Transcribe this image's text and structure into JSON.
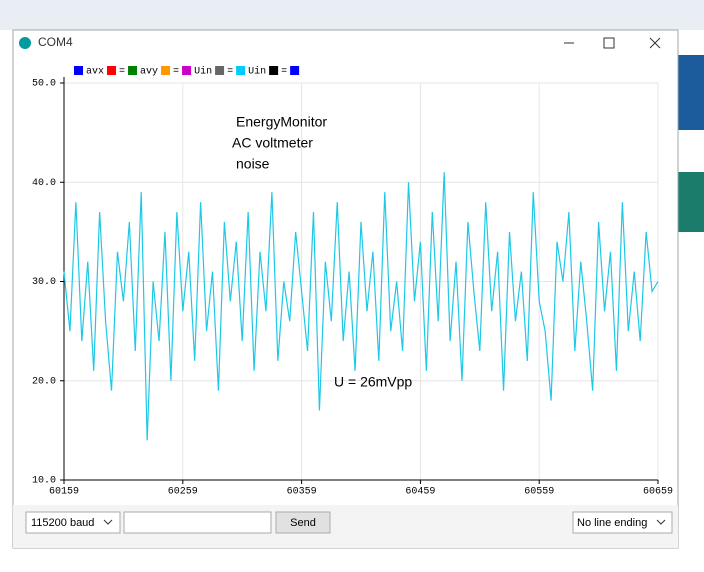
{
  "window": {
    "title": "COM4",
    "baud": "115200 baud",
    "send": "Send",
    "line_ending": "No line ending"
  },
  "chart_data": {
    "type": "line",
    "legend": [
      {
        "name": "avx",
        "color": "#0000ff"
      },
      {
        "name": "=",
        "color": "#ff0000"
      },
      {
        "name": "avy",
        "color": "#008000"
      },
      {
        "name": "=",
        "color": "#ff9900"
      },
      {
        "name": "Uin",
        "color": "#cc00cc"
      },
      {
        "name": "=",
        "color": "#666666"
      },
      {
        "name": "Uin",
        "color": "#00ccff"
      },
      {
        "name": "=",
        "color": "#000000"
      },
      {
        "color": "#0000ff"
      }
    ],
    "annotations": [
      "EnergyMonitor",
      "AC voltmeter",
      "noise",
      "U = 26mVpp"
    ],
    "xlim": [
      60159,
      60659
    ],
    "xticks": [
      60159,
      60259,
      60359,
      60459,
      60559,
      60659
    ],
    "ylim": [
      10,
      50
    ],
    "yticks": [
      {
        "value": 10,
        "label": "10.0"
      },
      {
        "value": 20,
        "label": "20.0"
      },
      {
        "value": 30,
        "label": "30.0"
      },
      {
        "value": 40,
        "label": "40.0"
      },
      {
        "value": 50,
        "label": "50.0"
      }
    ],
    "grid": true,
    "x": [
      60159,
      60164,
      60169,
      60174,
      60179,
      60184,
      60189,
      60194,
      60199,
      60204,
      60209,
      60214,
      60219,
      60224,
      60229,
      60234,
      60239,
      60244,
      60249,
      60254,
      60259,
      60264,
      60269,
      60274,
      60279,
      60284,
      60289,
      60294,
      60299,
      60304,
      60309,
      60314,
      60319,
      60324,
      60329,
      60334,
      60339,
      60344,
      60349,
      60354,
      60359,
      60364,
      60369,
      60374,
      60379,
      60384,
      60389,
      60394,
      60399,
      60404,
      60409,
      60414,
      60419,
      60424,
      60429,
      60434,
      60439,
      60444,
      60449,
      60454,
      60459,
      60464,
      60469,
      60474,
      60479,
      60484,
      60489,
      60494,
      60499,
      60504,
      60509,
      60514,
      60519,
      60524,
      60529,
      60534,
      60539,
      60544,
      60549,
      60554,
      60559,
      60564,
      60569,
      60574,
      60579,
      60584,
      60589,
      60594,
      60599,
      60604,
      60609,
      60614,
      60619,
      60624,
      60629,
      60634,
      60639,
      60644,
      60649,
      60654,
      60659
    ],
    "series": [
      {
        "color": "#1ec8e6",
        "values": [
          31,
          25,
          38,
          24,
          32,
          21,
          37,
          26,
          19,
          33,
          28,
          36,
          23,
          39,
          14,
          30,
          24,
          35,
          20,
          37,
          27,
          33,
          22,
          38,
          25,
          31,
          19,
          36,
          28,
          34,
          24,
          37,
          21,
          33,
          27,
          39,
          22,
          30,
          26,
          35,
          29,
          23,
          37,
          17,
          32,
          26,
          38,
          24,
          31,
          21,
          36,
          27,
          33,
          22,
          39,
          25,
          30,
          23,
          40,
          28,
          34,
          21,
          37,
          26,
          41,
          24,
          32,
          20,
          36,
          29,
          23,
          38,
          27,
          33,
          19,
          35,
          26,
          31,
          22,
          39,
          28,
          25,
          18,
          34,
          30,
          37,
          23,
          32,
          26,
          19,
          36,
          27,
          33,
          21,
          38,
          25,
          31,
          24,
          35,
          29,
          30
        ]
      }
    ]
  }
}
